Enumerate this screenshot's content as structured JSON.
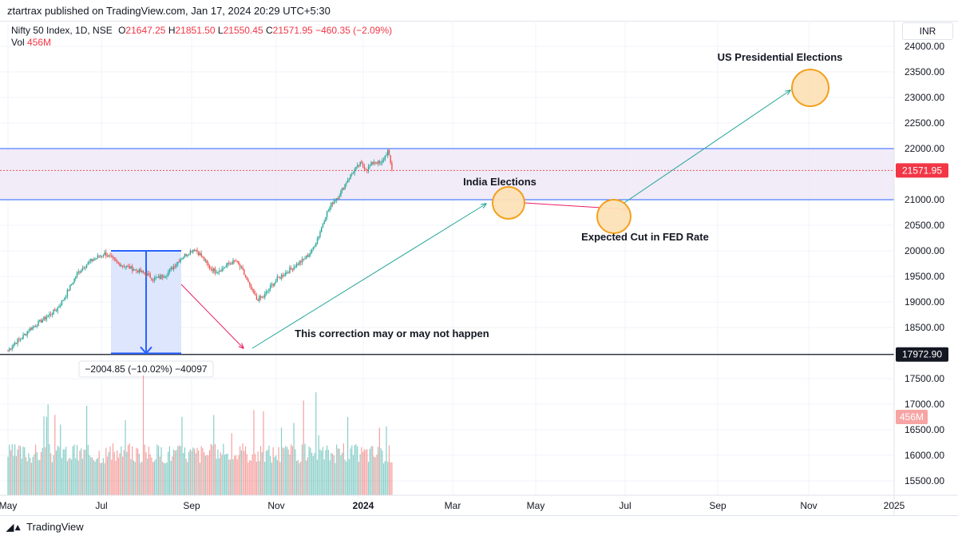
{
  "header": {
    "published": "ztartrax published on TradingView.com, Jan 17, 2024 20:29 UTC+5:30"
  },
  "legend": {
    "symbol": "Nifty 50 Index, 1D, NSE",
    "o_label": "O",
    "o_value": "21647.25",
    "h_label": "H",
    "h_value": "21851.50",
    "l_label": "L",
    "l_value": "21550.45",
    "c_label": "C",
    "c_value": "21571.95",
    "change": "−460.35 (−2.09%)",
    "vol_label": "Vol",
    "vol_value": "456M"
  },
  "price_scale": {
    "currency": "INR",
    "last_price_badge": "21571.95",
    "level_badge": "17972.90",
    "vol_badge": "456M"
  },
  "annotations": {
    "us_elections": "US Presidential Elections",
    "india_elections": "India Elections",
    "fed_cut": "Expected Cut in FED Rate",
    "correction": "This correction may or may not happen",
    "measure": "−2004.85 (−10.02%) −40097"
  },
  "footer": {
    "brand": "TradingView"
  },
  "colors": {
    "up": "#26a69a",
    "down": "#ef5350",
    "zone": "#ede7f6",
    "zone_line": "#2962ff",
    "orange": "#f39c12",
    "teal_arrow": "#26a69a",
    "pink_arrow": "#e91e63",
    "measure_fill": "#d7e2fb"
  },
  "chart_data": {
    "type": "candlestick",
    "title": "Nifty 50 Index, 1D, NSE",
    "ylim": [
      15200,
      24300
    ],
    "y_ticks": [
      "24000.00",
      "23500.00",
      "23000.00",
      "22500.00",
      "22000.00",
      "21500.00",
      "21000.00",
      "20500.00",
      "20000.00",
      "19500.00",
      "19000.00",
      "18500.00",
      "18000.00",
      "17500.00",
      "17000.00",
      "16500.00",
      "16000.00",
      "15500.00"
    ],
    "x_ticks": [
      "May",
      "Jul",
      "Sep",
      "Nov",
      "2024",
      "Mar",
      "May",
      "Jul",
      "Sep",
      "Nov",
      "2025"
    ],
    "price_path": [
      [
        0,
        18050
      ],
      [
        5,
        18200
      ],
      [
        10,
        18300
      ],
      [
        15,
        18450
      ],
      [
        20,
        18550
      ],
      [
        25,
        18650
      ],
      [
        30,
        18750
      ],
      [
        35,
        18850
      ],
      [
        40,
        19050
      ],
      [
        45,
        19300
      ],
      [
        50,
        19550
      ],
      [
        55,
        19700
      ],
      [
        60,
        19800
      ],
      [
        65,
        19880
      ],
      [
        70,
        19950
      ],
      [
        75,
        19850
      ],
      [
        80,
        19750
      ],
      [
        85,
        19700
      ],
      [
        90,
        19650
      ],
      [
        95,
        19600
      ],
      [
        100,
        19550
      ],
      [
        105,
        19450
      ],
      [
        110,
        19480
      ],
      [
        115,
        19550
      ],
      [
        120,
        19700
      ],
      [
        125,
        19850
      ],
      [
        130,
        19950
      ],
      [
        135,
        20050
      ],
      [
        140,
        19900
      ],
      [
        145,
        19700
      ],
      [
        150,
        19600
      ],
      [
        155,
        19650
      ],
      [
        160,
        19750
      ],
      [
        165,
        19800
      ],
      [
        170,
        19600
      ],
      [
        175,
        19300
      ],
      [
        180,
        19050
      ],
      [
        185,
        19100
      ],
      [
        190,
        19300
      ],
      [
        195,
        19450
      ],
      [
        200,
        19550
      ],
      [
        205,
        19650
      ],
      [
        210,
        19750
      ],
      [
        215,
        19850
      ],
      [
        220,
        20000
      ],
      [
        225,
        20300
      ],
      [
        230,
        20700
      ],
      [
        235,
        20950
      ],
      [
        240,
        21100
      ],
      [
        245,
        21350
      ],
      [
        250,
        21550
      ],
      [
        255,
        21700
      ],
      [
        260,
        21600
      ],
      [
        265,
        21750
      ],
      [
        270,
        21700
      ],
      [
        275,
        21950
      ],
      [
        278,
        21590
      ]
    ],
    "volume_axis_note": "volume bars with latest 456M",
    "zone": {
      "low": 21000,
      "high": 22000
    },
    "support_level": 17972.9,
    "last_close": 21571.95,
    "measure": {
      "from": 20000,
      "to": 17995,
      "change": -2004.85,
      "pct": -10.02
    }
  }
}
